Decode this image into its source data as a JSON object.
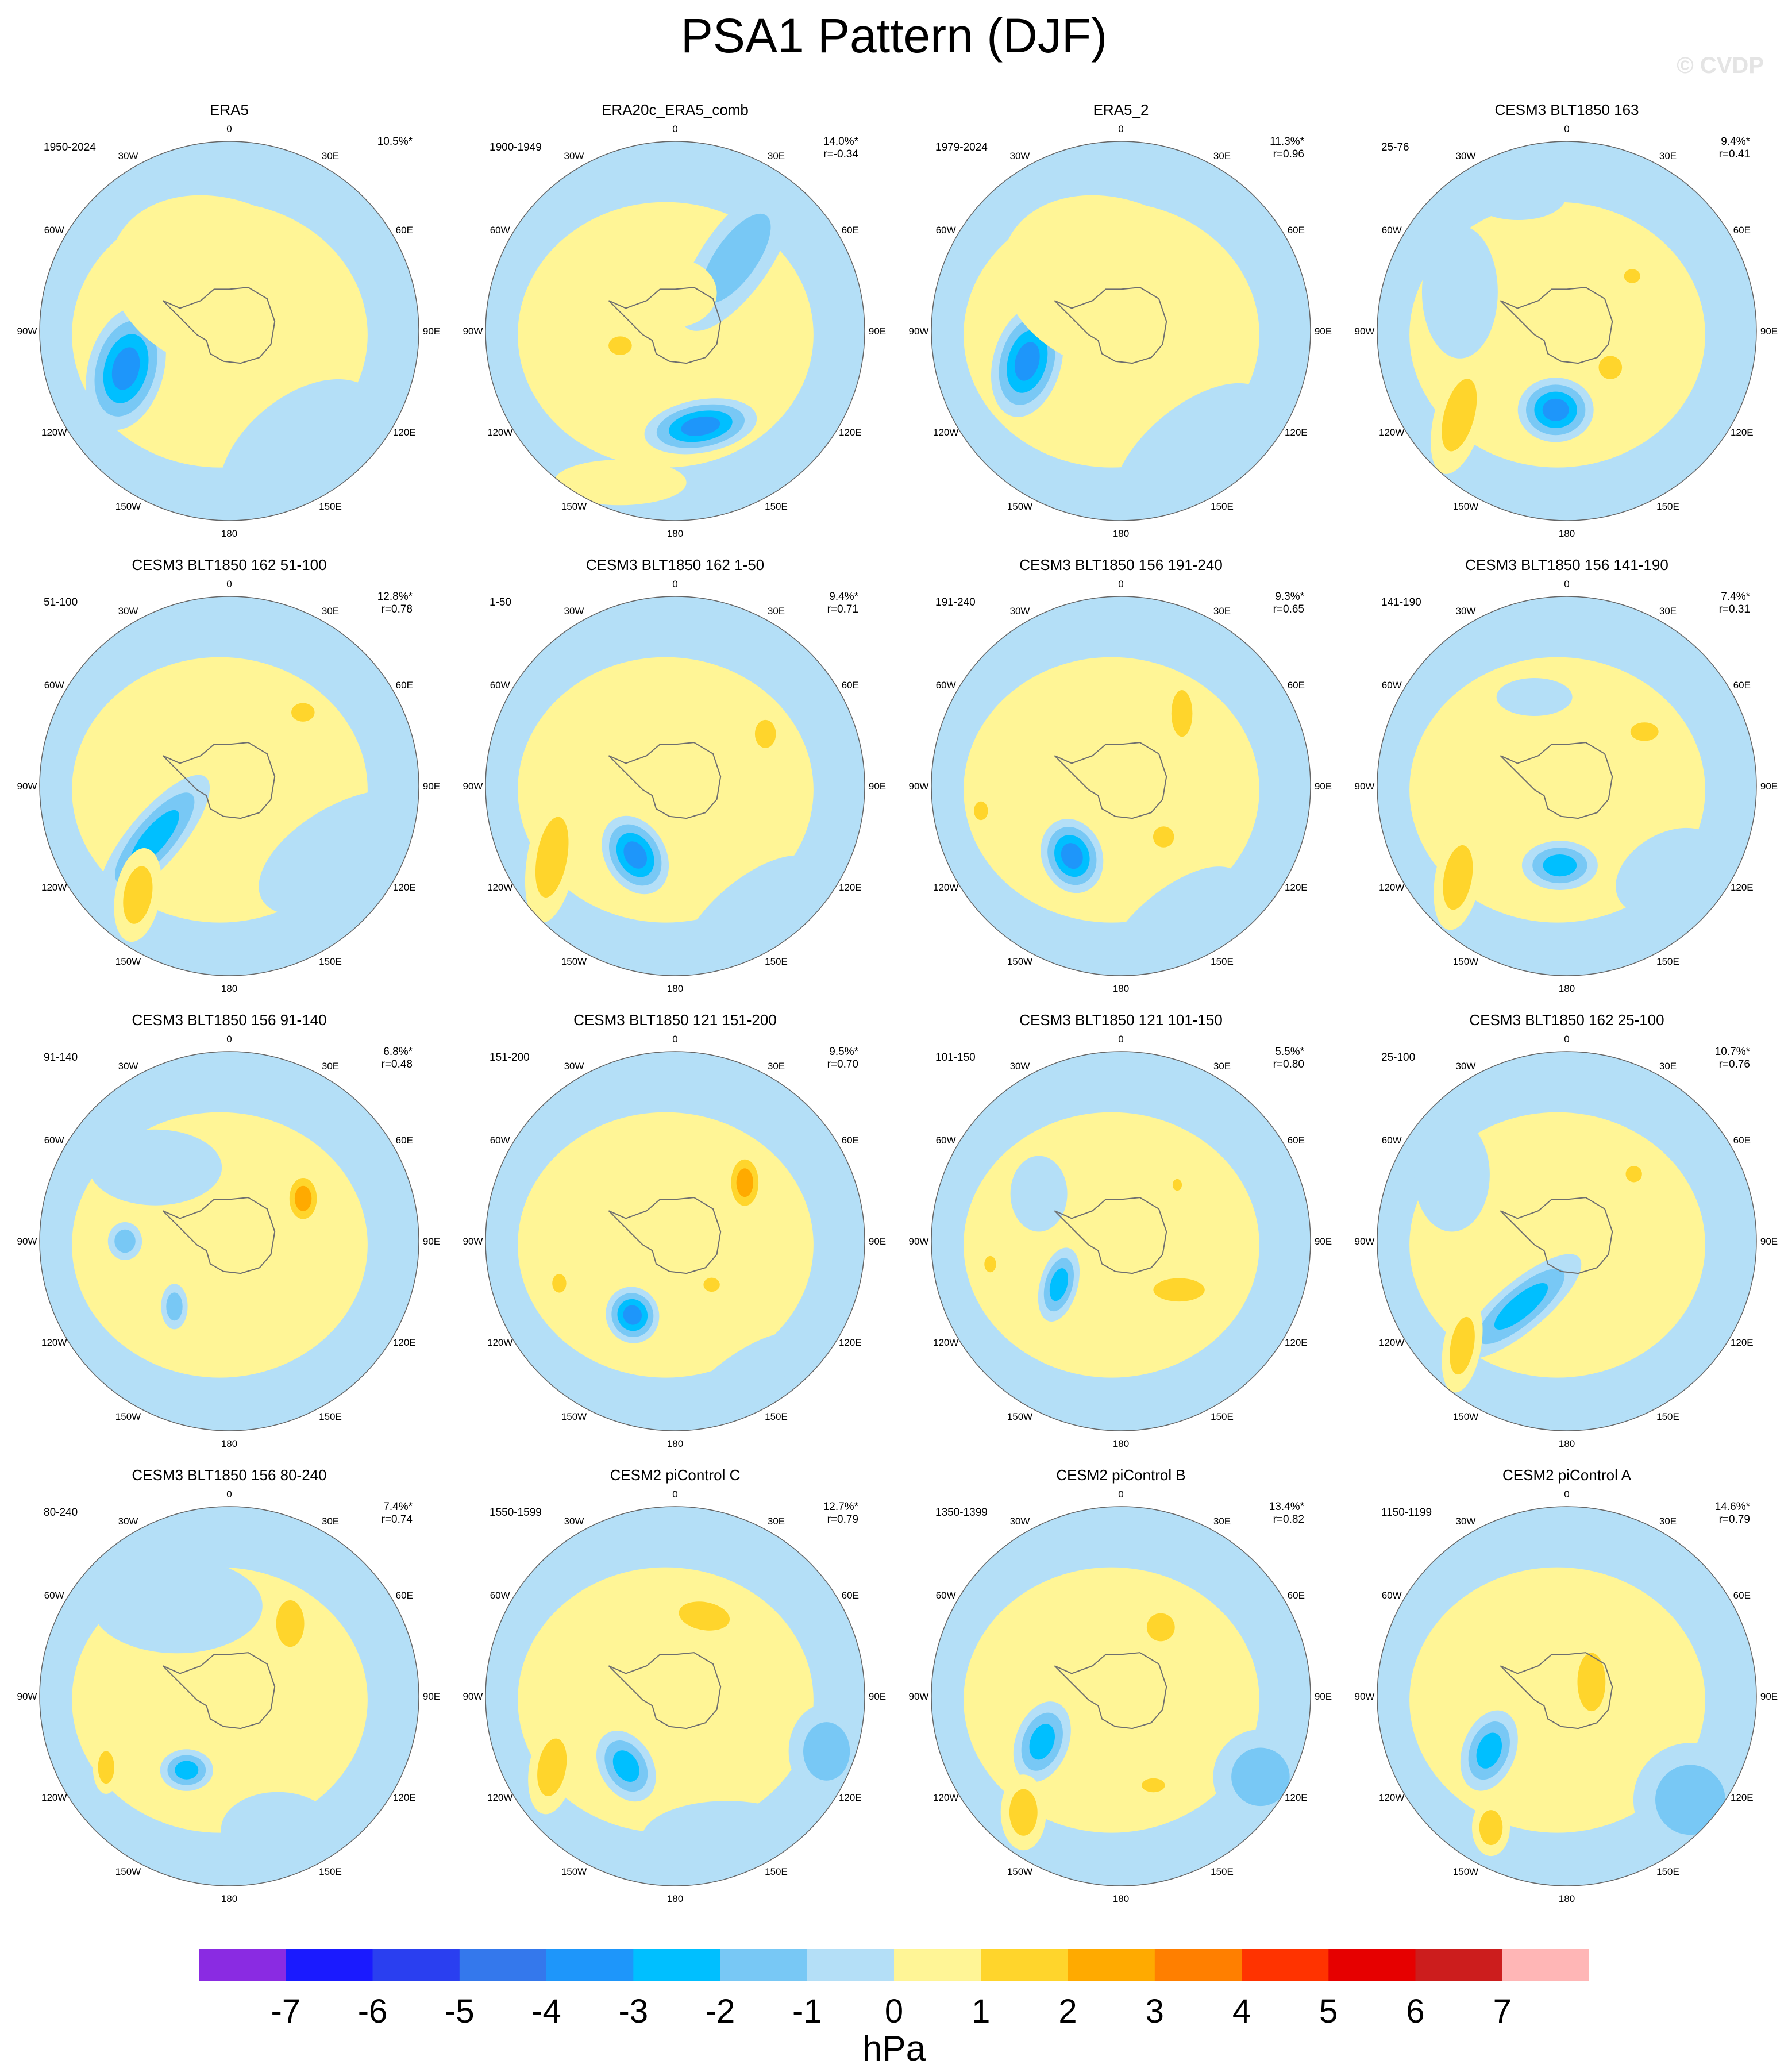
{
  "title": "PSA1 Pattern (DJF)",
  "watermark": "© CVDP",
  "units": "hPa",
  "lon_labels": [
    "0",
    "30E",
    "60E",
    "90E",
    "120E",
    "150E",
    "180",
    "150W",
    "120W",
    "90W",
    "60W",
    "30W"
  ],
  "colors": {
    "background": "#ffffff",
    "land_outline": "#6f6f6f",
    "map_outline": "#666666"
  },
  "legend": {
    "labels": [
      "-7",
      "-6",
      "-5",
      "-4",
      "-3",
      "-2",
      "-1",
      "0",
      "1",
      "2",
      "3",
      "4",
      "5",
      "6",
      "7"
    ],
    "colors": [
      "#8a2be2",
      "#1a1aff",
      "#2a3ff0",
      "#3478ec",
      "#1e96fa",
      "#00bfff",
      "#78c8f5",
      "#b4dff7",
      "#fff596",
      "#ffd52c",
      "#ffaa00",
      "#ff7f00",
      "#ff3300",
      "#e60000",
      "#cc1d1d",
      "#ffb6b6"
    ]
  },
  "panels": [
    {
      "title": "ERA5",
      "period": "1950-2024",
      "pct": "10.5%*",
      "r": "",
      "blobs": [
        {
          "a": -110,
          "d": 0.58,
          "rx": 0.2,
          "ry": 0.33,
          "rot": 15,
          "v": -3.4
        },
        {
          "a": 12,
          "d": 0.6,
          "rx": 0.12,
          "ry": 0.07,
          "rot": 0,
          "v": 1.2
        },
        {
          "a": 70,
          "d": 0.25,
          "rx": 0.08,
          "ry": 0.06,
          "rot": 0,
          "v": 1.0
        },
        {
          "a": 150,
          "d": 0.75,
          "rx": 0.5,
          "ry": 0.3,
          "rot": -40,
          "v": -0.7
        },
        {
          "a": -10,
          "d": 0.25,
          "rx": 0.6,
          "ry": 0.45,
          "rot": 20,
          "v": 0.3
        }
      ]
    },
    {
      "title": "ERA20c_ERA5_comb",
      "period": "1900-1949",
      "pct": "14.0%*",
      "r": "r=-0.34",
      "blobs": [
        {
          "a": 165,
          "d": 0.52,
          "rx": 0.3,
          "ry": 0.14,
          "rot": -10,
          "v": -3.5
        },
        {
          "a": 40,
          "d": 0.5,
          "rx": 0.18,
          "ry": 0.45,
          "rot": 35,
          "v": -1.6
        },
        {
          "a": -105,
          "d": 0.3,
          "rx": 0.1,
          "ry": 0.08,
          "rot": 0,
          "v": 1.3
        },
        {
          "a": -160,
          "d": 0.85,
          "rx": 0.35,
          "ry": 0.12,
          "rot": 0,
          "v": 0.6
        },
        {
          "a": 0,
          "d": 0.2,
          "rx": 0.22,
          "ry": 0.18,
          "rot": 0,
          "v": 0.7
        }
      ]
    },
    {
      "title": "ERA5_2",
      "period": "1979-2024",
      "pct": "11.3%*",
      "r": "r=0.96",
      "blobs": [
        {
          "a": -108,
          "d": 0.52,
          "rx": 0.18,
          "ry": 0.3,
          "rot": 15,
          "v": -3.4
        },
        {
          "a": 20,
          "d": 0.5,
          "rx": 0.14,
          "ry": 0.08,
          "rot": 0,
          "v": 1.3
        },
        {
          "a": 65,
          "d": 0.35,
          "rx": 0.08,
          "ry": 0.18,
          "rot": 0,
          "v": 1.2
        },
        {
          "a": 150,
          "d": 0.75,
          "rx": 0.5,
          "ry": 0.25,
          "rot": -40,
          "v": -0.6
        },
        {
          "a": -10,
          "d": 0.25,
          "rx": 0.6,
          "ry": 0.45,
          "rot": 20,
          "v": 0.4
        }
      ]
    },
    {
      "title": "CESM3 BLT1850 163",
      "period": "25-76",
      "pct": "9.4%*",
      "r": "r=0.41",
      "blobs": [
        {
          "a": -172,
          "d": 0.42,
          "rx": 0.2,
          "ry": 0.17,
          "rot": 0,
          "v": -3.2
        },
        {
          "a": -128,
          "d": 0.72,
          "rx": 0.13,
          "ry": 0.32,
          "rot": 15,
          "v": 1.3
        },
        {
          "a": 130,
          "d": 0.3,
          "rx": 0.1,
          "ry": 0.1,
          "rot": 0,
          "v": 1.2
        },
        {
          "a": 50,
          "d": 0.45,
          "rx": 0.07,
          "ry": 0.06,
          "rot": 0,
          "v": 1.1
        },
        {
          "a": -70,
          "d": 0.6,
          "rx": 0.2,
          "ry": 0.35,
          "rot": 0,
          "v": -0.6
        },
        {
          "a": -20,
          "d": 0.75,
          "rx": 0.25,
          "ry": 0.12,
          "rot": 0,
          "v": -0.6
        }
      ]
    },
    {
      "title": "CESM3 BLT1850 162 51-100",
      "period": "51-100",
      "pct": "12.8%*",
      "r": "r=0.78",
      "blobs": [
        {
          "a": -125,
          "d": 0.48,
          "rx": 0.14,
          "ry": 0.42,
          "rot": 40,
          "v": -2.6
        },
        {
          "a": -140,
          "d": 0.75,
          "rx": 0.12,
          "ry": 0.25,
          "rot": 10,
          "v": 1.4
        },
        {
          "a": 45,
          "d": 0.55,
          "rx": 0.1,
          "ry": 0.08,
          "rot": 0,
          "v": 1.3
        },
        {
          "a": 120,
          "d": 0.7,
          "rx": 0.5,
          "ry": 0.25,
          "rot": -30,
          "v": -0.6
        }
      ]
    },
    {
      "title": "CESM3 BLT1850 162 1-50",
      "period": "1-50",
      "pct": "9.4%*",
      "r": "r=0.71",
      "blobs": [
        {
          "a": -150,
          "d": 0.42,
          "rx": 0.16,
          "ry": 0.22,
          "rot": -30,
          "v": -3.2
        },
        {
          "a": -120,
          "d": 0.75,
          "rx": 0.13,
          "ry": 0.35,
          "rot": 10,
          "v": 1.3
        },
        {
          "a": 60,
          "d": 0.55,
          "rx": 0.09,
          "ry": 0.12,
          "rot": 0,
          "v": 1.3
        },
        {
          "a": 150,
          "d": 0.8,
          "rx": 0.45,
          "ry": 0.2,
          "rot": -40,
          "v": -0.6
        }
      ]
    },
    {
      "title": "CESM3 BLT1850 156 191-240",
      "period": "191-240",
      "pct": "9.3%*",
      "r": "r=0.65",
      "blobs": [
        {
          "a": -145,
          "d": 0.45,
          "rx": 0.16,
          "ry": 0.2,
          "rot": -20,
          "v": -3.2
        },
        {
          "a": 40,
          "d": 0.5,
          "rx": 0.09,
          "ry": 0.2,
          "rot": 0,
          "v": 1.3
        },
        {
          "a": 140,
          "d": 0.35,
          "rx": 0.09,
          "ry": 0.09,
          "rot": 0,
          "v": 1.2
        },
        {
          "a": -100,
          "d": 0.75,
          "rx": 0.06,
          "ry": 0.08,
          "rot": 0,
          "v": 1.1
        },
        {
          "a": 160,
          "d": 0.8,
          "rx": 0.45,
          "ry": 0.2,
          "rot": -40,
          "v": -0.6
        }
      ]
    },
    {
      "title": "CESM3 BLT1850 156 141-190",
      "period": "141-190",
      "pct": "7.4%*",
      "r": "r=0.31",
      "blobs": [
        {
          "a": -175,
          "d": 0.42,
          "rx": 0.2,
          "ry": 0.13,
          "rot": 0,
          "v": -3.0
        },
        {
          "a": -130,
          "d": 0.75,
          "rx": 0.12,
          "ry": 0.28,
          "rot": 10,
          "v": 1.3
        },
        {
          "a": 55,
          "d": 0.5,
          "rx": 0.12,
          "ry": 0.08,
          "rot": 0,
          "v": 1.2
        },
        {
          "a": -20,
          "d": 0.5,
          "rx": 0.2,
          "ry": 0.1,
          "rot": 0,
          "v": -0.6
        },
        {
          "a": 130,
          "d": 0.7,
          "rx": 0.3,
          "ry": 0.2,
          "rot": -30,
          "v": -0.6
        }
      ]
    },
    {
      "title": "CESM3 BLT1850 156 91-140",
      "period": "91-140",
      "pct": "6.8%*",
      "r": "r=0.48",
      "blobs": [
        {
          "a": -90,
          "d": 0.55,
          "rx": 0.09,
          "ry": 0.1,
          "rot": 0,
          "v": -1.6
        },
        {
          "a": -140,
          "d": 0.45,
          "rx": 0.07,
          "ry": 0.12,
          "rot": 0,
          "v": -1.5
        },
        {
          "a": 60,
          "d": 0.45,
          "rx": 0.1,
          "ry": 0.15,
          "rot": 0,
          "v": 3.0
        },
        {
          "a": -45,
          "d": 0.55,
          "rx": 0.35,
          "ry": 0.2,
          "rot": 0,
          "v": -0.6
        }
      ]
    },
    {
      "title": "CESM3 BLT1850 121 151-200",
      "period": "151-200",
      "pct": "9.5%*",
      "r": "r=0.70",
      "blobs": [
        {
          "a": -150,
          "d": 0.45,
          "rx": 0.14,
          "ry": 0.15,
          "rot": -20,
          "v": -3.2
        },
        {
          "a": 50,
          "d": 0.48,
          "rx": 0.1,
          "ry": 0.17,
          "rot": 0,
          "v": 2.5
        },
        {
          "a": 140,
          "d": 0.3,
          "rx": 0.07,
          "ry": 0.06,
          "rot": 0,
          "v": 1.2
        },
        {
          "a": -110,
          "d": 0.65,
          "rx": 0.06,
          "ry": 0.08,
          "rot": 0,
          "v": 1.1
        },
        {
          "a": 160,
          "d": 0.85,
          "rx": 0.45,
          "ry": 0.15,
          "rot": -40,
          "v": -0.6
        }
      ]
    },
    {
      "title": "CESM3 BLT1850 121 101-150",
      "period": "101-150",
      "pct": "5.5%*",
      "r": "r=0.80",
      "blobs": [
        {
          "a": -125,
          "d": 0.4,
          "rx": 0.1,
          "ry": 0.2,
          "rot": 15,
          "v": -2.6
        },
        {
          "a": 130,
          "d": 0.4,
          "rx": 0.22,
          "ry": 0.1,
          "rot": 0,
          "v": 1.2
        },
        {
          "a": 45,
          "d": 0.42,
          "rx": 0.04,
          "ry": 0.05,
          "rot": 0,
          "v": 1.1
        },
        {
          "a": -100,
          "d": 0.7,
          "rx": 0.05,
          "ry": 0.07,
          "rot": 0,
          "v": 1.1
        },
        {
          "a": -60,
          "d": 0.5,
          "rx": 0.15,
          "ry": 0.2,
          "rot": 0,
          "v": -0.6
        }
      ]
    },
    {
      "title": "CESM3 BLT1850 162 25-100",
      "period": "25-100",
      "pct": "10.7%*",
      "r": "r=0.76",
      "blobs": [
        {
          "a": -145,
          "d": 0.42,
          "rx": 0.13,
          "ry": 0.4,
          "rot": 50,
          "v": -2.8
        },
        {
          "a": -135,
          "d": 0.78,
          "rx": 0.1,
          "ry": 0.25,
          "rot": 10,
          "v": 1.3
        },
        {
          "a": 45,
          "d": 0.5,
          "rx": 0.07,
          "ry": 0.07,
          "rot": 0,
          "v": 1.2
        },
        {
          "a": -60,
          "d": 0.7,
          "rx": 0.2,
          "ry": 0.3,
          "rot": 0,
          "v": -0.6
        }
      ]
    },
    {
      "title": "CESM3 BLT1850 156 80-240",
      "period": "80-240",
      "pct": "7.4%*",
      "r": "r=0.74",
      "blobs": [
        {
          "a": -150,
          "d": 0.45,
          "rx": 0.14,
          "ry": 0.11,
          "rot": 0,
          "v": -2.6
        },
        {
          "a": 40,
          "d": 0.5,
          "rx": 0.12,
          "ry": 0.2,
          "rot": 0,
          "v": 1.3
        },
        {
          "a": -120,
          "d": 0.75,
          "rx": 0.07,
          "ry": 0.14,
          "rot": 0,
          "v": 1.2
        },
        {
          "a": -30,
          "d": 0.55,
          "rx": 0.45,
          "ry": 0.25,
          "rot": 0,
          "v": -0.6
        },
        {
          "a": 160,
          "d": 0.75,
          "rx": 0.3,
          "ry": 0.2,
          "rot": 0,
          "v": -0.6
        }
      ]
    },
    {
      "title": "CESM2 piControl C",
      "period": "1550-1599",
      "pct": "12.7%*",
      "r": "r=0.79",
      "blobs": [
        {
          "a": -145,
          "d": 0.45,
          "rx": 0.14,
          "ry": 0.2,
          "rot": -30,
          "v": -2.6
        },
        {
          "a": 20,
          "d": 0.45,
          "rx": 0.22,
          "ry": 0.12,
          "rot": 10,
          "v": 1.3
        },
        {
          "a": -120,
          "d": 0.75,
          "rx": 0.12,
          "ry": 0.25,
          "rot": 10,
          "v": 1.3
        },
        {
          "a": 110,
          "d": 0.85,
          "rx": 0.2,
          "ry": 0.25,
          "rot": 0,
          "v": -1.6
        },
        {
          "a": 160,
          "d": 0.8,
          "rx": 0.45,
          "ry": 0.2,
          "rot": 0,
          "v": -0.6
        }
      ]
    },
    {
      "title": "CESM2 piControl B",
      "period": "1350-1399",
      "pct": "13.4%*",
      "r": "r=0.82",
      "blobs": [
        {
          "a": -120,
          "d": 0.48,
          "rx": 0.14,
          "ry": 0.22,
          "rot": 20,
          "v": -2.6
        },
        {
          "a": 30,
          "d": 0.42,
          "rx": 0.12,
          "ry": 0.12,
          "rot": 0,
          "v": 1.3
        },
        {
          "a": -140,
          "d": 0.8,
          "rx": 0.12,
          "ry": 0.2,
          "rot": 0,
          "v": 1.3
        },
        {
          "a": 120,
          "d": 0.85,
          "rx": 0.25,
          "ry": 0.25,
          "rot": 0,
          "v": -1.6
        },
        {
          "a": 160,
          "d": 0.5,
          "rx": 0.1,
          "ry": 0.06,
          "rot": 0,
          "v": 1.2
        }
      ]
    },
    {
      "title": "CESM2 piControl A",
      "period": "1150-1199",
      "pct": "14.6%*",
      "r": "r=0.79",
      "blobs": [
        {
          "a": -125,
          "d": 0.5,
          "rx": 0.14,
          "ry": 0.22,
          "rot": 20,
          "v": -2.6
        },
        {
          "a": 60,
          "d": 0.15,
          "rx": 0.12,
          "ry": 0.25,
          "rot": 0,
          "v": 1.3
        },
        {
          "a": -150,
          "d": 0.8,
          "rx": 0.1,
          "ry": 0.15,
          "rot": 0,
          "v": 1.3
        },
        {
          "a": 130,
          "d": 0.85,
          "rx": 0.3,
          "ry": 0.3,
          "rot": 0,
          "v": -1.6
        }
      ]
    }
  ]
}
